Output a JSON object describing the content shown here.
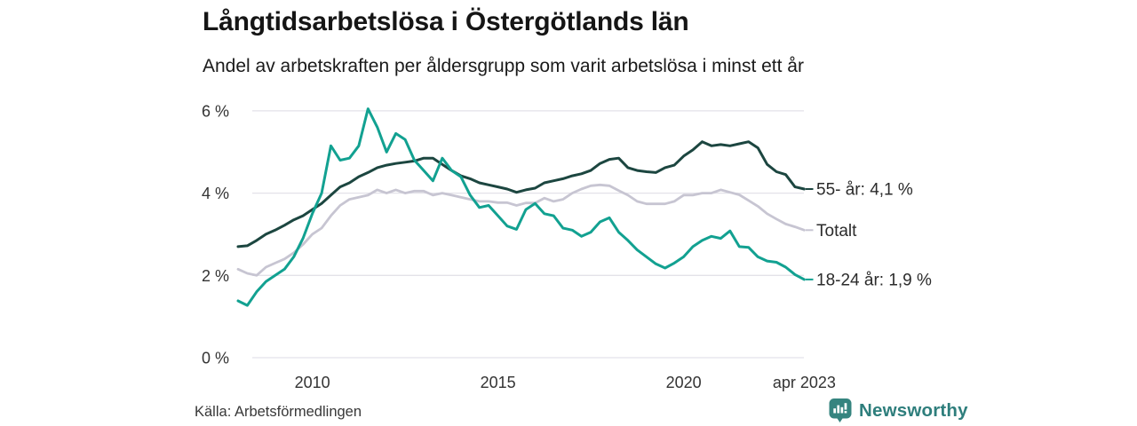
{
  "title": "Långtidsarbetslösa i Östergötlands län",
  "subtitle": "Andel av arbetskraften per åldersgrupp som varit arbetslösa i minst ett år",
  "source": {
    "text": "Källa: Arbetsförmedlingen"
  },
  "brand": {
    "name": "Newsworthy",
    "color": "#2e7e7c",
    "icon": "newsworthy-bar-chart-bubble-icon"
  },
  "chart_data": {
    "type": "line",
    "title": "Långtidsarbetslösa i Östergötlands län",
    "subtitle": "Andel av arbetskraften per åldersgrupp som varit arbetslösa i minst ett år",
    "xlabel": "",
    "ylabel": "",
    "x_unit": "decimal_year (monthly share of labour force unemployed 12+ months)",
    "xlim": [
      2008,
      2023.42
    ],
    "ylim": [
      0,
      6.3
    ],
    "grid": "horizontal",
    "legend_position": "right-end-labels",
    "x_ticks": [
      {
        "value": 2010,
        "label": "2010"
      },
      {
        "value": 2015,
        "label": "2015"
      },
      {
        "value": 2020,
        "label": "2020"
      },
      {
        "value": 2023.25,
        "label": "apr 2023"
      }
    ],
    "y_ticks": [
      {
        "value": 0,
        "label": "0 %"
      },
      {
        "value": 2,
        "label": "2 %"
      },
      {
        "value": 4,
        "label": "4 %"
      },
      {
        "value": 6,
        "label": "6 %"
      }
    ],
    "x": [
      2008.0,
      2008.25,
      2008.5,
      2008.75,
      2009.0,
      2009.25,
      2009.5,
      2009.75,
      2010.0,
      2010.25,
      2010.5,
      2010.75,
      2011.0,
      2011.25,
      2011.5,
      2011.75,
      2012.0,
      2012.25,
      2012.5,
      2012.75,
      2013.0,
      2013.25,
      2013.5,
      2013.75,
      2014.0,
      2014.25,
      2014.5,
      2014.75,
      2015.0,
      2015.25,
      2015.5,
      2015.75,
      2016.0,
      2016.25,
      2016.5,
      2016.75,
      2017.0,
      2017.25,
      2017.5,
      2017.75,
      2018.0,
      2018.25,
      2018.5,
      2018.75,
      2019.0,
      2019.25,
      2019.5,
      2019.75,
      2020.0,
      2020.25,
      2020.5,
      2020.75,
      2021.0,
      2021.25,
      2021.5,
      2021.75,
      2022.0,
      2022.25,
      2022.5,
      2022.75,
      2023.0,
      2023.25
    ],
    "series": [
      {
        "name": "55- år",
        "end_label": "55- år: 4,1 %",
        "last_value": 4.1,
        "color": "#1c4640",
        "stroke_width": 3,
        "values": [
          2.7,
          2.72,
          2.85,
          3.0,
          3.1,
          3.22,
          3.35,
          3.45,
          3.6,
          3.75,
          3.95,
          4.15,
          4.25,
          4.4,
          4.5,
          4.62,
          4.68,
          4.72,
          4.75,
          4.78,
          4.85,
          4.85,
          4.7,
          4.55,
          4.42,
          4.35,
          4.25,
          4.2,
          4.15,
          4.1,
          4.02,
          4.08,
          4.12,
          4.25,
          4.3,
          4.35,
          4.42,
          4.47,
          4.55,
          4.72,
          4.82,
          4.85,
          4.62,
          4.55,
          4.52,
          4.5,
          4.62,
          4.68,
          4.9,
          5.05,
          5.25,
          5.15,
          5.18,
          5.15,
          5.2,
          5.25,
          5.1,
          4.7,
          4.52,
          4.45,
          4.15,
          4.1
        ]
      },
      {
        "name": "Totalt",
        "end_label": "Totalt",
        "last_value": 3.1,
        "color": "#c7c5d2",
        "stroke_width": 2.8,
        "values": [
          2.15,
          2.05,
          2.0,
          2.2,
          2.3,
          2.4,
          2.55,
          2.75,
          3.0,
          3.15,
          3.45,
          3.7,
          3.85,
          3.9,
          3.95,
          4.08,
          4.0,
          4.08,
          4.0,
          4.05,
          4.05,
          3.95,
          4.0,
          3.95,
          3.9,
          3.85,
          3.8,
          3.8,
          3.77,
          3.77,
          3.7,
          3.76,
          3.76,
          3.88,
          3.8,
          3.85,
          4.0,
          4.1,
          4.18,
          4.2,
          4.18,
          4.06,
          3.95,
          3.8,
          3.74,
          3.74,
          3.74,
          3.8,
          3.95,
          3.95,
          4.0,
          4.0,
          4.08,
          4.02,
          3.96,
          3.82,
          3.68,
          3.5,
          3.37,
          3.25,
          3.18,
          3.1
        ]
      },
      {
        "name": "18-24 år",
        "end_label": "18-24 år: 1,9 %",
        "last_value": 1.9,
        "color": "#12a191",
        "stroke_width": 3,
        "values": [
          1.38,
          1.27,
          1.6,
          1.85,
          2.0,
          2.15,
          2.45,
          2.9,
          3.5,
          4.0,
          5.15,
          4.8,
          4.85,
          5.15,
          6.05,
          5.6,
          5.0,
          5.45,
          5.3,
          4.8,
          4.55,
          4.3,
          4.85,
          4.55,
          4.4,
          3.95,
          3.65,
          3.7,
          3.45,
          3.2,
          3.12,
          3.6,
          3.75,
          3.5,
          3.45,
          3.15,
          3.1,
          2.95,
          3.05,
          3.3,
          3.4,
          3.05,
          2.85,
          2.62,
          2.45,
          2.28,
          2.18,
          2.3,
          2.45,
          2.7,
          2.85,
          2.95,
          2.9,
          3.08,
          2.7,
          2.68,
          2.45,
          2.35,
          2.32,
          2.2,
          2.02,
          1.9
        ]
      }
    ],
    "colors": {
      "grid": "#e3e2e9",
      "axis_text": "#333333",
      "label_text": "#2b2b2b"
    }
  }
}
